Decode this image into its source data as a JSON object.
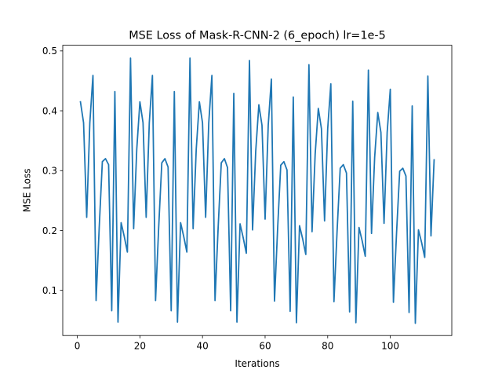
{
  "chart_data": {
    "type": "line",
    "title": "MSE Loss of Mask-R-CNN-2 (6_epoch) lr=1e-5",
    "xlabel": "Iterations",
    "ylabel": "MSE Loss",
    "xlim": [
      -4.65,
      119.65
    ],
    "ylim": [
      0.0245,
      0.5095
    ],
    "xticks": [
      0,
      20,
      40,
      60,
      80,
      100
    ],
    "yticks": [
      0.1,
      0.2,
      0.3,
      0.4,
      0.5
    ],
    "xtick_labels": [
      "0",
      "20",
      "40",
      "60",
      "80",
      "100"
    ],
    "ytick_labels": [
      "0.1",
      "0.2",
      "0.3",
      "0.4",
      "0.5"
    ],
    "grid": false,
    "series": [
      {
        "color": "#1f77b4",
        "x": [
          1,
          2,
          3,
          4,
          5,
          6,
          7,
          8,
          9,
          10,
          11,
          12,
          13,
          14,
          15,
          16,
          17,
          18,
          19,
          20,
          21,
          22,
          23,
          24,
          25,
          26,
          27,
          28,
          29,
          30,
          31,
          32,
          33,
          34,
          35,
          36,
          37,
          38,
          39,
          40,
          41,
          42,
          43,
          44,
          45,
          46,
          47,
          48,
          49,
          50,
          51,
          52,
          53,
          54,
          55,
          56,
          57,
          58,
          59,
          60,
          61,
          62,
          63,
          64,
          65,
          66,
          67,
          68,
          69,
          70,
          71,
          72,
          73,
          74,
          75,
          76,
          77,
          78,
          79,
          80,
          81,
          82,
          83,
          84,
          85,
          86,
          87,
          88,
          89,
          90,
          91,
          92,
          93,
          94,
          95,
          96,
          97,
          98,
          99,
          100,
          101,
          102,
          103,
          104,
          105,
          106,
          107,
          108,
          109,
          110,
          111,
          112,
          113,
          114
        ],
        "y": [
          0.415,
          0.38,
          0.222,
          0.38,
          0.459,
          0.083,
          0.205,
          0.315,
          0.32,
          0.31,
          0.066,
          0.432,
          0.047,
          0.213,
          0.19,
          0.164,
          0.488,
          0.203,
          0.336,
          0.415,
          0.38,
          0.222,
          0.38,
          0.459,
          0.083,
          0.205,
          0.313,
          0.32,
          0.306,
          0.066,
          0.432,
          0.047,
          0.213,
          0.19,
          0.164,
          0.488,
          0.203,
          0.336,
          0.415,
          0.38,
          0.222,
          0.38,
          0.459,
          0.083,
          0.205,
          0.313,
          0.32,
          0.305,
          0.066,
          0.429,
          0.047,
          0.211,
          0.188,
          0.162,
          0.484,
          0.201,
          0.332,
          0.41,
          0.376,
          0.219,
          0.376,
          0.453,
          0.082,
          0.203,
          0.309,
          0.315,
          0.301,
          0.065,
          0.423,
          0.046,
          0.208,
          0.186,
          0.16,
          0.477,
          0.198,
          0.328,
          0.404,
          0.37,
          0.216,
          0.37,
          0.445,
          0.081,
          0.199,
          0.304,
          0.31,
          0.296,
          0.064,
          0.416,
          0.046,
          0.205,
          0.183,
          0.157,
          0.468,
          0.195,
          0.322,
          0.397,
          0.364,
          0.212,
          0.364,
          0.436,
          0.08,
          0.196,
          0.299,
          0.304,
          0.291,
          0.063,
          0.408,
          0.045,
          0.201,
          0.18,
          0.155,
          0.458,
          0.191,
          0.318
        ]
      }
    ]
  }
}
